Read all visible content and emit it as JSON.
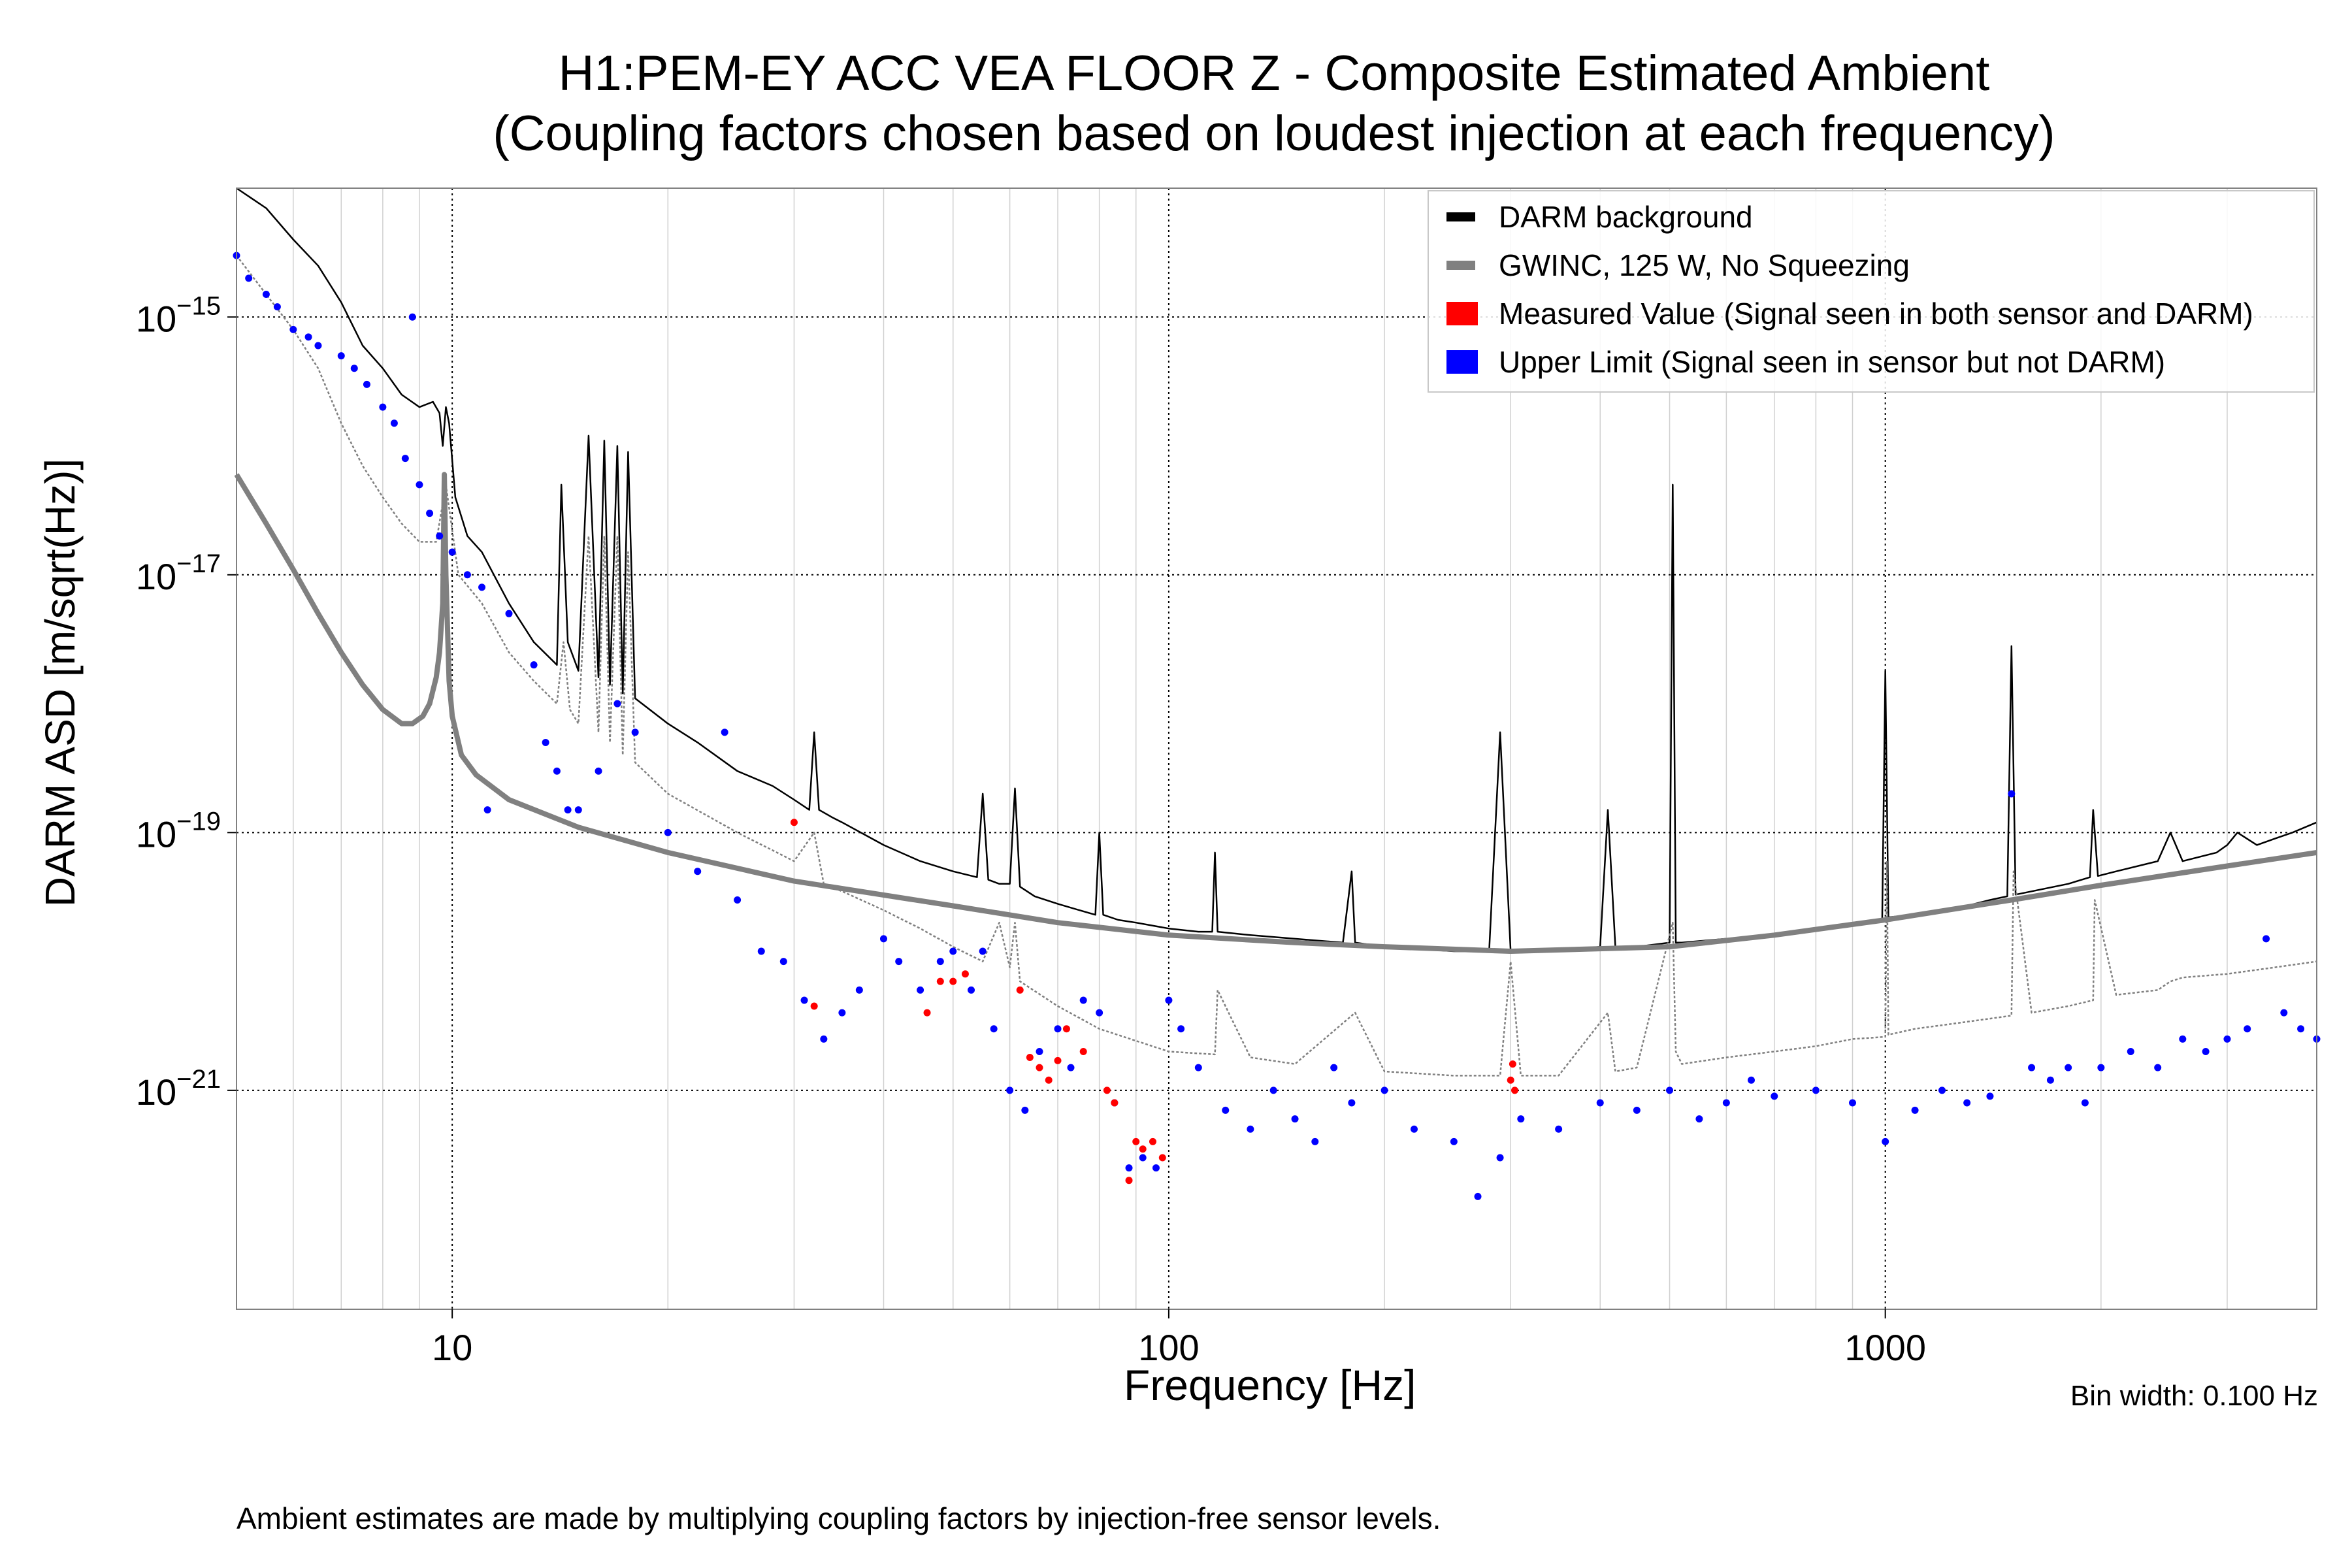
{
  "chart_data": {
    "type": "scatter",
    "title": "H1:PEM-EY ACC VEA FLOOR Z - Composite Estimated Ambient",
    "subtitle": "(Coupling factors chosen based on loudest injection at each frequency)",
    "xlabel": "Frequency [Hz]",
    "ylabel": "DARM ASD [m/sqrt(Hz)]",
    "xscale": "log",
    "yscale": "log",
    "xlim": [
      5,
      4000
    ],
    "ylim": [
      2e-23,
      1e-14
    ],
    "x_ticks": [
      {
        "value": 10,
        "label": "10"
      },
      {
        "value": 100,
        "label": "100"
      },
      {
        "value": 1000,
        "label": "1000"
      }
    ],
    "y_ticks": [
      {
        "value": 1e-15,
        "mantissa": "10",
        "exponent": "−15"
      },
      {
        "value": 1e-17,
        "mantissa": "10",
        "exponent": "−17"
      },
      {
        "value": 1e-19,
        "mantissa": "10",
        "exponent": "−19"
      },
      {
        "value": 1e-21,
        "mantissa": "10",
        "exponent": "−21"
      }
    ],
    "grid": true,
    "legend_position": "top-right",
    "legend": [
      {
        "label": "DARM background",
        "color": "#000000",
        "kind": "line"
      },
      {
        "label": "GWINC, 125 W, No Squeezing",
        "color": "#808080",
        "kind": "line"
      },
      {
        "label": "Measured Value (Signal seen in both sensor and DARM)",
        "color": "#ff0000",
        "kind": "patch"
      },
      {
        "label": "Upper Limit (Signal seen in sensor but not DARM)",
        "color": "#0000ff",
        "kind": "patch"
      }
    ],
    "series": [
      {
        "name": "DARM background",
        "color": "#000000",
        "style": "line",
        "x": [
          5,
          5.5,
          6,
          6.5,
          7,
          7.5,
          8,
          8.5,
          9,
          9.4,
          9.6,
          9.7,
          9.8,
          9.9,
          10.1,
          10.5,
          11,
          12,
          13,
          14,
          14.2,
          14.5,
          15,
          15.5,
          16,
          16.3,
          16.6,
          17,
          17.3,
          17.6,
          18,
          20,
          22,
          25,
          28,
          30,
          31.5,
          32,
          32.5,
          34,
          35,
          40,
          45,
          50,
          54,
          55,
          56,
          58,
          60,
          61,
          62,
          65,
          70,
          75,
          79,
          80,
          81,
          85,
          90,
          100,
          110,
          115,
          116,
          117,
          130,
          150,
          175,
          180,
          182,
          200,
          250,
          280,
          290,
          300,
          310,
          350,
          400,
          410,
          420,
          450,
          500,
          505,
          510,
          520,
          600,
          700,
          800,
          900,
          990,
          1000,
          1010,
          1100,
          1200,
          1300,
          1400,
          1480,
          1500,
          1520,
          1600,
          1800,
          1930,
          1950,
          1980,
          2100,
          2400,
          2500,
          2600,
          2900,
          3000,
          3100,
          3300,
          3500,
          3700,
          4000
        ],
        "y": [
          1e-14,
          7e-15,
          4e-15,
          2.5e-15,
          1.3e-15,
          6e-16,
          4e-16,
          2.5e-16,
          2e-16,
          2.2e-16,
          1.8e-16,
          1e-16,
          2e-16,
          1.5e-16,
          4e-17,
          2e-17,
          1.5e-17,
          6e-18,
          3e-18,
          2e-18,
          5e-17,
          3e-18,
          1.8e-18,
          1.2e-16,
          1.6e-18,
          1.1e-16,
          1.4e-18,
          1e-16,
          1.2e-18,
          9e-17,
          1.1e-18,
          7e-19,
          5e-19,
          3e-19,
          2.3e-19,
          1.8e-19,
          1.5e-19,
          6e-19,
          1.5e-19,
          1.3e-19,
          1.2e-19,
          8e-20,
          6e-20,
          5e-20,
          4.5e-20,
          2e-19,
          4.3e-20,
          4e-20,
          4e-20,
          2.2e-19,
          3.8e-20,
          3.2e-20,
          2.8e-20,
          2.5e-20,
          2.3e-20,
          1e-19,
          2.3e-20,
          2.1e-20,
          2e-20,
          1.8e-20,
          1.7e-20,
          1.7e-20,
          7e-20,
          1.7e-20,
          1.6e-20,
          1.5e-20,
          1.4e-20,
          5e-20,
          1.4e-20,
          1.3e-20,
          1.2e-20,
          1.2e-20,
          6e-19,
          1.2e-20,
          1.2e-20,
          1.2e-20,
          1.3e-20,
          1.5e-19,
          1.3e-20,
          1.3e-20,
          1.4e-20,
          5e-17,
          1.4e-20,
          1.4e-20,
          1.5e-20,
          1.6e-20,
          1.8e-20,
          2e-20,
          2.1e-20,
          1.8e-18,
          2.2e-20,
          2.3e-20,
          2.5e-20,
          2.7e-20,
          3e-20,
          3.2e-20,
          2.8e-18,
          3.3e-20,
          3.5e-20,
          4e-20,
          4.5e-20,
          1.5e-19,
          4.6e-20,
          5e-20,
          6e-20,
          1e-19,
          6e-20,
          7e-20,
          8e-20,
          1e-19,
          8e-20,
          9e-20,
          1e-19,
          1.2e-19
        ]
      },
      {
        "name": "GWINC, 125 W, No Squeezing",
        "color": "#808080",
        "style": "thick-line",
        "x": [
          5,
          5.5,
          6,
          6.5,
          7,
          7.5,
          8,
          8.5,
          8.8,
          9.1,
          9.3,
          9.5,
          9.6,
          9.7,
          9.75,
          9.8,
          9.9,
          10,
          10.3,
          10.8,
          12,
          15,
          20,
          30,
          50,
          70,
          100,
          150,
          200,
          300,
          500,
          700,
          1000,
          1500,
          2000,
          3000,
          4000
        ],
        "y": [
          6e-17,
          2.5e-17,
          1.1e-17,
          5e-18,
          2.5e-18,
          1.4e-18,
          9e-19,
          7e-19,
          7e-19,
          8e-19,
          1e-18,
          1.6e-18,
          2.5e-18,
          6e-18,
          6e-17,
          1e-17,
          1.5e-18,
          8e-19,
          4e-19,
          2.8e-19,
          1.8e-19,
          1.1e-19,
          7e-20,
          4.2e-20,
          2.7e-20,
          2e-20,
          1.6e-20,
          1.4e-20,
          1.3e-20,
          1.2e-20,
          1.3e-20,
          1.6e-20,
          2.1e-20,
          3e-20,
          3.9e-20,
          5.5e-20,
          7e-20
        ]
      },
      {
        "name": "GWINC",
        "color": "#808080",
        "style": "dotted-line",
        "x": [
          5,
          5.5,
          6,
          6.5,
          7,
          7.5,
          8,
          8.5,
          9,
          9.5,
          9.8,
          10.2,
          11,
          12,
          13,
          14,
          14.3,
          14.6,
          15,
          15.5,
          16,
          16.3,
          16.6,
          17,
          17.3,
          17.6,
          18,
          20,
          25,
          30,
          32,
          33,
          35,
          40,
          45,
          50,
          55,
          58,
          60,
          61,
          62,
          70,
          80,
          100,
          116,
          117,
          130,
          150,
          182,
          200,
          250,
          290,
          300,
          310,
          350,
          410,
          420,
          450,
          505,
          510,
          520,
          600,
          700,
          800,
          900,
          1000,
          1005,
          1010,
          1100,
          1200,
          1400,
          1500,
          1510,
          1600,
          1800,
          1950,
          1960,
          2100,
          2400,
          2500,
          2600,
          3000,
          3500,
          4000
        ],
        "y": [
          3e-15,
          1.5e-15,
          8e-16,
          4e-16,
          1.5e-16,
          7e-17,
          4e-17,
          2.5e-17,
          1.8e-17,
          1.8e-17,
          5e-17,
          1e-17,
          6e-18,
          2.5e-18,
          1.5e-18,
          1e-18,
          3e-18,
          9e-19,
          7e-19,
          2e-17,
          6e-19,
          2e-17,
          5e-19,
          2e-17,
          4e-19,
          1.5e-17,
          3.5e-19,
          2e-19,
          1e-19,
          6e-20,
          1e-19,
          4e-20,
          3.5e-20,
          2.5e-20,
          1.8e-20,
          1.3e-20,
          1e-20,
          2e-20,
          9e-21,
          2e-20,
          7e-21,
          4.5e-21,
          3e-21,
          2e-21,
          1.9e-21,
          6e-21,
          1.8e-21,
          1.6e-21,
          4e-21,
          1.4e-21,
          1.3e-21,
          1.3e-21,
          1e-20,
          1.3e-21,
          1.3e-21,
          4e-21,
          1.4e-21,
          1.5e-21,
          2e-20,
          2e-21,
          1.6e-21,
          1.8e-21,
          2e-21,
          2.2e-21,
          2.5e-21,
          2.6e-21,
          6e-20,
          2.7e-21,
          3e-21,
          3.2e-21,
          3.6e-21,
          3.8e-21,
          5e-20,
          4e-21,
          4.5e-21,
          5e-21,
          3e-20,
          5.5e-21,
          6e-21,
          7e-21,
          7.5e-21,
          8e-21,
          9e-21,
          1e-20
        ]
      },
      {
        "name": "Upper Limit (Signal seen in sensor but not DARM)",
        "color": "#0000ff",
        "style": "scatter",
        "points": [
          [
            5,
            3e-15
          ],
          [
            5.2,
            2e-15
          ],
          [
            5.5,
            1.5e-15
          ],
          [
            5.7,
            1.2e-15
          ],
          [
            6,
            8e-16
          ],
          [
            6.3,
            7e-16
          ],
          [
            6.5,
            6e-16
          ],
          [
            7,
            5e-16
          ],
          [
            7.3,
            4e-16
          ],
          [
            7.6,
            3e-16
          ],
          [
            8,
            2e-16
          ],
          [
            8.3,
            1.5e-16
          ],
          [
            8.6,
            8e-17
          ],
          [
            8.8,
            1e-15
          ],
          [
            9,
            5e-17
          ],
          [
            9.3,
            3e-17
          ],
          [
            9.6,
            2e-17
          ],
          [
            10,
            1.5e-17
          ],
          [
            10.5,
            1e-17
          ],
          [
            11,
            8e-18
          ],
          [
            11.2,
            1.5e-19
          ],
          [
            12,
            5e-18
          ],
          [
            13,
            2e-18
          ],
          [
            13.5,
            5e-19
          ],
          [
            14,
            3e-19
          ],
          [
            14.5,
            1.5e-19
          ],
          [
            15,
            1.5e-19
          ],
          [
            16,
            3e-19
          ],
          [
            17,
            1e-18
          ],
          [
            18,
            6e-19
          ],
          [
            20,
            1e-19
          ],
          [
            22,
            5e-20
          ],
          [
            24,
            6e-19
          ],
          [
            25,
            3e-20
          ],
          [
            27,
            1.2e-20
          ],
          [
            29,
            1e-20
          ],
          [
            31,
            5e-21
          ],
          [
            33,
            2.5e-21
          ],
          [
            35,
            4e-21
          ],
          [
            37,
            6e-21
          ],
          [
            40,
            1.5e-20
          ],
          [
            42,
            1e-20
          ],
          [
            45,
            6e-21
          ],
          [
            48,
            1e-20
          ],
          [
            50,
            1.2e-20
          ],
          [
            53,
            6e-21
          ],
          [
            55,
            1.2e-20
          ],
          [
            57,
            3e-21
          ],
          [
            60,
            1e-21
          ],
          [
            63,
            7e-22
          ],
          [
            66,
            2e-21
          ],
          [
            70,
            3e-21
          ],
          [
            73,
            1.5e-21
          ],
          [
            76,
            5e-21
          ],
          [
            80,
            4e-21
          ],
          [
            84,
            8e-22
          ],
          [
            88,
            2.5e-22
          ],
          [
            92,
            3e-22
          ],
          [
            96,
            2.5e-22
          ],
          [
            100,
            5e-21
          ],
          [
            104,
            3e-21
          ],
          [
            110,
            1.5e-21
          ],
          [
            120,
            7e-22
          ],
          [
            130,
            5e-22
          ],
          [
            140,
            1e-21
          ],
          [
            150,
            6e-22
          ],
          [
            160,
            4e-22
          ],
          [
            170,
            1.5e-21
          ],
          [
            180,
            8e-22
          ],
          [
            200,
            1e-21
          ],
          [
            220,
            5e-22
          ],
          [
            250,
            4e-22
          ],
          [
            270,
            1.5e-22
          ],
          [
            290,
            3e-22
          ],
          [
            310,
            6e-22
          ],
          [
            350,
            5e-22
          ],
          [
            400,
            8e-22
          ],
          [
            450,
            7e-22
          ],
          [
            500,
            1e-21
          ],
          [
            550,
            6e-22
          ],
          [
            600,
            8e-22
          ],
          [
            650,
            1.2e-21
          ],
          [
            700,
            9e-22
          ],
          [
            800,
            1e-21
          ],
          [
            900,
            8e-22
          ],
          [
            1000,
            4e-22
          ],
          [
            1100,
            7e-22
          ],
          [
            1200,
            1e-21
          ],
          [
            1300,
            8e-22
          ],
          [
            1400,
            9e-22
          ],
          [
            1500,
            2e-19
          ],
          [
            1600,
            1.5e-21
          ],
          [
            1700,
            1.2e-21
          ],
          [
            1800,
            1.5e-21
          ],
          [
            1900,
            8e-22
          ],
          [
            2000,
            1.5e-21
          ],
          [
            2200,
            2e-21
          ],
          [
            2400,
            1.5e-21
          ],
          [
            2600,
            2.5e-21
          ],
          [
            2800,
            2e-21
          ],
          [
            3000,
            2.5e-21
          ],
          [
            3200,
            3e-21
          ],
          [
            3400,
            1.5e-20
          ],
          [
            3600,
            4e-21
          ],
          [
            3800,
            3e-21
          ],
          [
            4000,
            2.5e-21
          ]
        ]
      },
      {
        "name": "Measured Value (Signal seen in both sensor and DARM)",
        "color": "#ff0000",
        "style": "scatter",
        "points": [
          [
            30,
            1.2e-19
          ],
          [
            32,
            4.5e-21
          ],
          [
            46,
            4e-21
          ],
          [
            48,
            7e-21
          ],
          [
            50,
            7e-21
          ],
          [
            52,
            8e-21
          ],
          [
            62,
            6e-21
          ],
          [
            64,
            1.8e-21
          ],
          [
            66,
            1.5e-21
          ],
          [
            68,
            1.2e-21
          ],
          [
            70,
            1.7e-21
          ],
          [
            72,
            3e-21
          ],
          [
            76,
            2e-21
          ],
          [
            82,
            1e-21
          ],
          [
            84,
            8e-22
          ],
          [
            88,
            2e-22
          ],
          [
            90,
            4e-22
          ],
          [
            92,
            3.5e-22
          ],
          [
            95,
            4e-22
          ],
          [
            98,
            3e-22
          ],
          [
            300,
            1.2e-21
          ],
          [
            302,
            1.6e-21
          ],
          [
            304,
            1e-21
          ]
        ]
      }
    ],
    "bin_width": "Bin width: 0.100 Hz",
    "footnote": "Ambient estimates are made by multiplying coupling factors by injection-free sensor levels."
  }
}
